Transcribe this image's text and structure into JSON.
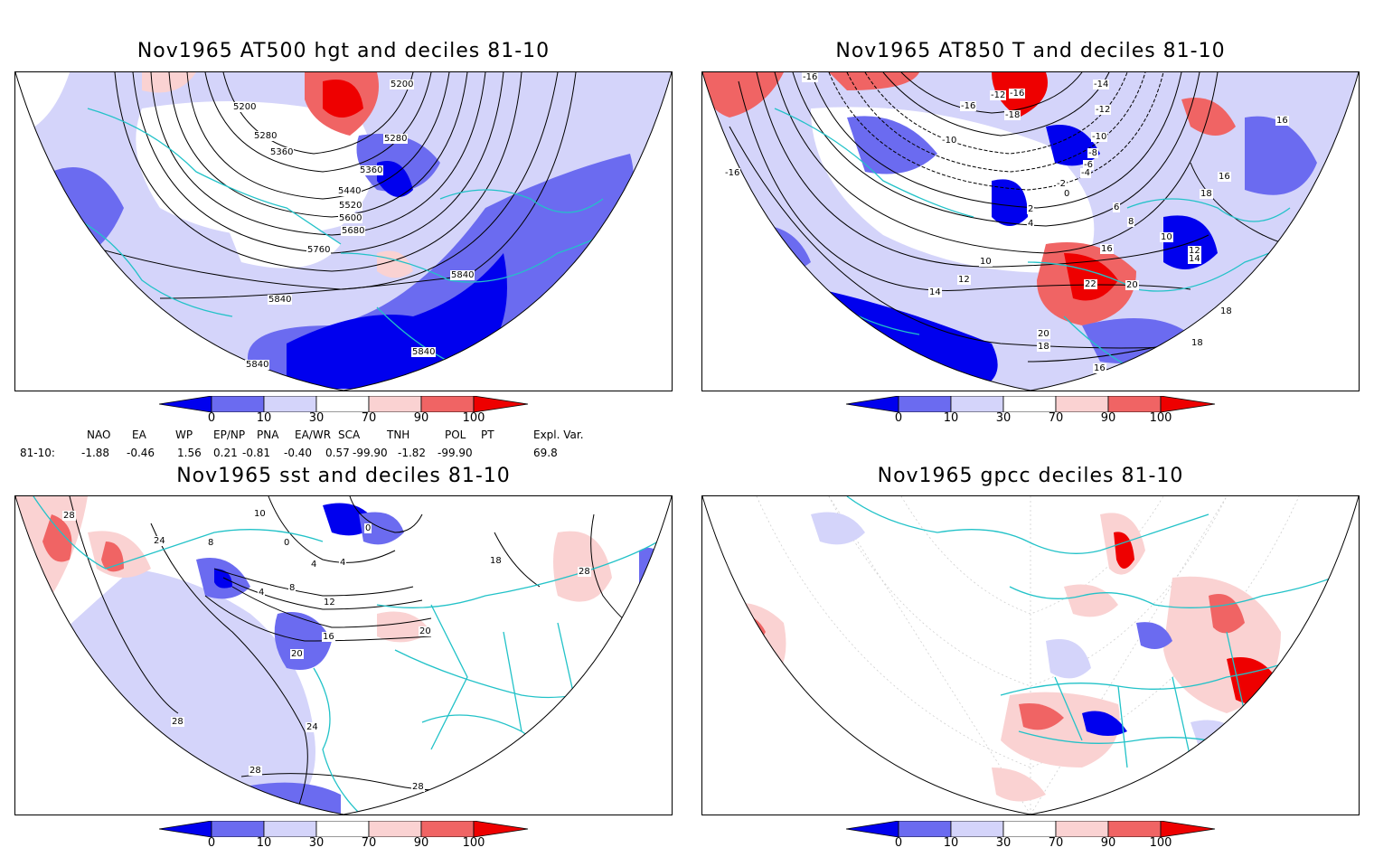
{
  "panels": [
    {
      "title": "Nov1965 AT500 hgt and deciles 81-10",
      "labels": [
        "5200",
        "5200",
        "5280",
        "5360",
        "5280",
        "5360",
        "5440",
        "5520",
        "5600",
        "5680",
        "5760",
        "5840",
        "5840",
        "5840",
        "5840"
      ]
    },
    {
      "title": "Nov1965 AT850 T and deciles 81-10",
      "labels": [
        "-16",
        "-16",
        "-12",
        "-16",
        "-14",
        "-16",
        "-10",
        "-12",
        "-18",
        "-10",
        "-8",
        "-6",
        "-4",
        "-2",
        "0",
        "2",
        "4",
        "6",
        "8",
        "10",
        "10",
        "12",
        "12",
        "14",
        "14",
        "16",
        "16",
        "16",
        "18",
        "18",
        "20",
        "20",
        "22",
        "18",
        "16",
        "18"
      ]
    },
    {
      "title": "Nov1965 sst and deciles 81-10",
      "labels": [
        "28",
        "24",
        "10",
        "0",
        "0",
        "8",
        "4",
        "4",
        "4",
        "8",
        "12",
        "16",
        "20",
        "20",
        "28",
        "24",
        "28",
        "28",
        "28",
        "18"
      ]
    },
    {
      "title": "Nov1965 gpcc deciles 81-10",
      "labels": []
    }
  ],
  "colorbar": {
    "ticks": [
      "0",
      "10",
      "30",
      "70",
      "90",
      "100"
    ],
    "colors": [
      "#0000ee",
      "#6b6bf0",
      "#d4d4fa",
      "#ffffff",
      "#fad2d2",
      "#f06464",
      "#ee0000"
    ]
  },
  "indices": {
    "headers": [
      "NAO",
      "EA",
      "WP",
      "EP/NP",
      "PNA",
      "EA/WR",
      "SCA",
      "TNH",
      "POL",
      "PT",
      "Expl. Var."
    ],
    "row_label": "81-10:",
    "values": [
      "-1.88",
      "-0.46",
      "1.56",
      "0.21",
      "-0.81",
      "-0.40",
      "0.57",
      "-99.90",
      "-1.82",
      "-99.90",
      "69.8"
    ]
  }
}
